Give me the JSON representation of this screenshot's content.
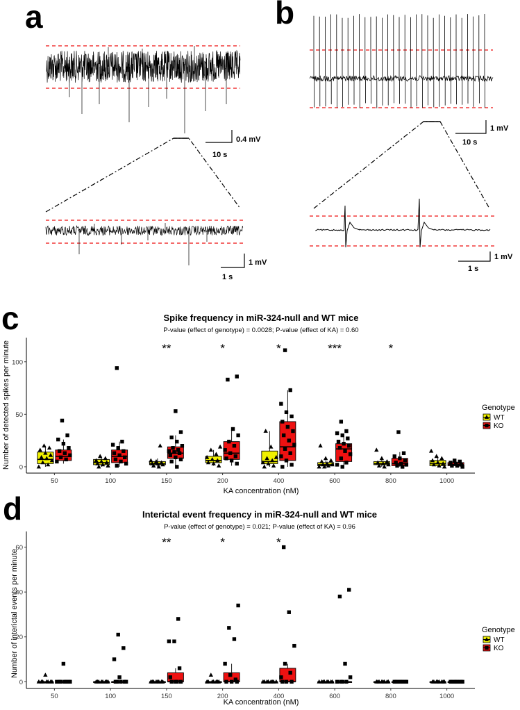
{
  "panels": {
    "a": {
      "label": "a",
      "scale_main_v": "0.4 mV",
      "scale_main_t": "10 s",
      "scale_zoom_v": "1 mV",
      "scale_zoom_t": "1 s"
    },
    "b": {
      "label": "b",
      "scale_main_v": "1 mV",
      "scale_main_t": "10 s",
      "scale_zoom_v": "1 mV",
      "scale_zoom_t": "1 s"
    },
    "c": {
      "label": "c"
    },
    "d": {
      "label": "d"
    }
  },
  "colors": {
    "WT": "#f0f000",
    "KO": "#ee1111",
    "threshold": "#ee1111"
  },
  "chart_data": [
    {
      "id": "c",
      "type": "box",
      "title": "Spike frequency in miR-324-null and WT mice",
      "subtitle": "P-value (effect of genotype) = 0.0028; P-value (effect of KA) = 0.60",
      "xlabel": "KA concentration (nM)",
      "ylabel": "Number of detected spikes per minute",
      "ylim": [
        -6,
        123
      ],
      "yticks": [
        "0",
        "50",
        "100"
      ],
      "yticks_values": [
        0,
        50,
        100
      ],
      "categories": [
        "50",
        "100",
        "150",
        "200",
        "400",
        "600",
        "800",
        "1000"
      ],
      "significance": [
        "",
        "",
        "**",
        "*",
        "*",
        "***",
        "*",
        ""
      ],
      "legend_title": "Genotype",
      "series": [
        {
          "name": "WT",
          "box": [
            {
              "lo": 0,
              "q1": 3,
              "med": 7,
              "q3": 14,
              "hi": 20
            },
            {
              "lo": 0,
              "q1": 2,
              "med": 4,
              "q3": 7,
              "hi": 10
            },
            {
              "lo": 0,
              "q1": 2,
              "med": 3,
              "q3": 5,
              "hi": 8
            },
            {
              "lo": 1,
              "q1": 4,
              "med": 6,
              "q3": 10,
              "hi": 16
            },
            {
              "lo": 0,
              "q1": 3,
              "med": 5,
              "q3": 15,
              "hi": 34
            },
            {
              "lo": 0,
              "q1": 1,
              "med": 2,
              "q3": 4,
              "hi": 6
            },
            {
              "lo": 0,
              "q1": 2,
              "med": 3,
              "q3": 5,
              "hi": 8
            },
            {
              "lo": 0,
              "q1": 1,
              "med": 3,
              "q3": 6,
              "hi": 10
            }
          ],
          "points": [
            [
              0,
              2,
              4,
              6,
              8,
              9,
              11,
              13,
              16,
              18,
              20
            ],
            [
              0,
              1,
              2,
              3,
              4,
              5,
              6,
              8,
              10
            ],
            [
              0,
              1,
              2,
              3,
              3,
              4,
              5,
              6,
              20
            ],
            [
              1,
              3,
              4,
              6,
              7,
              9,
              12,
              16,
              19
            ],
            [
              0,
              1,
              3,
              4,
              6,
              8,
              9,
              19,
              34
            ],
            [
              0,
              0,
              1,
              2,
              2,
              3,
              5,
              6,
              8,
              20
            ],
            [
              0,
              1,
              2,
              3,
              4,
              5,
              8,
              16
            ],
            [
              0,
              1,
              2,
              3,
              4,
              6,
              8,
              10,
              15
            ]
          ]
        },
        {
          "name": "KO",
          "box": [
            {
              "lo": 3,
              "q1": 6,
              "med": 10,
              "q3": 16,
              "hi": 26
            },
            {
              "lo": 0,
              "q1": 4,
              "med": 10,
              "q3": 16,
              "hi": 24
            },
            {
              "lo": 0,
              "q1": 8,
              "med": 13,
              "q3": 19,
              "hi": 30
            },
            {
              "lo": 1,
              "q1": 7,
              "med": 13,
              "q3": 24,
              "hi": 36
            },
            {
              "lo": 0,
              "q1": 6,
              "med": 19,
              "q3": 43,
              "hi": 73
            },
            {
              "lo": 0,
              "q1": 5,
              "med": 17,
              "q3": 22,
              "hi": 30
            },
            {
              "lo": 0,
              "q1": 1,
              "med": 3,
              "q3": 8,
              "hi": 14
            },
            {
              "lo": 0,
              "q1": 1,
              "med": 2,
              "q3": 4,
              "hi": 6
            }
          ],
          "points": [
            [
              5,
              7,
              9,
              11,
              13,
              15,
              18,
              22,
              26,
              30,
              44
            ],
            [
              1,
              3,
              5,
              7,
              9,
              11,
              13,
              15,
              18,
              21,
              24,
              94
            ],
            [
              0,
              5,
              7,
              9,
              11,
              13,
              14,
              15,
              16,
              18,
              20,
              24,
              28,
              33,
              53
            ],
            [
              3,
              6,
              8,
              10,
              13,
              16,
              20,
              24,
              30,
              36,
              83,
              86
            ],
            [
              0,
              2,
              6,
              10,
              13,
              17,
              21,
              25,
              30,
              34,
              38,
              43,
              48,
              52,
              60,
              73,
              111
            ],
            [
              0,
              2,
              4,
              8,
              12,
              15,
              18,
              20,
              22,
              24,
              27,
              30,
              32,
              34,
              43
            ],
            [
              0,
              1,
              2,
              3,
              4,
              6,
              8,
              10,
              13,
              33
            ],
            [
              0,
              1,
              1,
              2,
              3,
              4,
              5,
              6
            ]
          ]
        }
      ]
    },
    {
      "id": "d",
      "type": "box",
      "title": "Interictal event frequency in miR-324-null and WT mice",
      "subtitle": "P-value (effect of genotype) = 0.021; P-value (effect of KA) = 0.96",
      "xlabel": "KA concentration (nM)",
      "ylabel": "Number of interictal events per minute",
      "ylim": [
        -3,
        67
      ],
      "yticks": [
        "0",
        "20",
        "40",
        "60"
      ],
      "yticks_values": [
        0,
        20,
        40,
        60
      ],
      "categories": [
        "50",
        "100",
        "150",
        "200",
        "400",
        "600",
        "800",
        "1000"
      ],
      "significance": [
        "",
        "",
        "**",
        "*",
        "*",
        "",
        "",
        ""
      ],
      "legend_title": "Genotype",
      "series": [
        {
          "name": "WT",
          "box": [
            {
              "lo": 0,
              "q1": 0,
              "med": 0,
              "q3": 0,
              "hi": 0
            },
            {
              "lo": 0,
              "q1": 0,
              "med": 0,
              "q3": 0,
              "hi": 0
            },
            {
              "lo": 0,
              "q1": 0,
              "med": 0,
              "q3": 0,
              "hi": 0
            },
            {
              "lo": 0,
              "q1": 0,
              "med": 0,
              "q3": 0,
              "hi": 0
            },
            {
              "lo": 0,
              "q1": 0,
              "med": 0,
              "q3": 0,
              "hi": 0
            },
            {
              "lo": 0,
              "q1": 0,
              "med": 0,
              "q3": 0,
              "hi": 0
            },
            {
              "lo": 0,
              "q1": 0,
              "med": 0,
              "q3": 0,
              "hi": 0
            },
            {
              "lo": 0,
              "q1": 0,
              "med": 0,
              "q3": 0,
              "hi": 0
            }
          ],
          "points": [
            [
              0,
              0,
              0,
              0,
              0,
              0,
              0,
              3
            ],
            [
              0,
              0,
              0,
              0,
              0,
              0,
              0,
              0
            ],
            [
              0,
              0,
              0,
              0,
              0,
              0,
              0,
              0
            ],
            [
              0,
              0,
              0,
              0,
              0,
              0,
              0,
              3
            ],
            [
              0,
              0,
              0,
              0,
              0,
              0,
              0,
              0
            ],
            [
              0,
              0,
              0,
              0,
              0,
              0,
              0,
              0
            ],
            [
              0,
              0,
              0,
              0,
              0,
              0,
              0,
              0
            ],
            [
              0,
              0,
              0,
              0,
              0,
              0,
              0,
              0
            ]
          ]
        },
        {
          "name": "KO",
          "box": [
            {
              "lo": 0,
              "q1": 0,
              "med": 0,
              "q3": 0,
              "hi": 0
            },
            {
              "lo": 0,
              "q1": 0,
              "med": 0,
              "q3": 0,
              "hi": 0
            },
            {
              "lo": 0,
              "q1": 0,
              "med": 0,
              "q3": 4,
              "hi": 6
            },
            {
              "lo": 0,
              "q1": 0,
              "med": 0,
              "q3": 4,
              "hi": 8
            },
            {
              "lo": 0,
              "q1": 0,
              "med": 0,
              "q3": 6,
              "hi": 8
            },
            {
              "lo": 0,
              "q1": 0,
              "med": 0,
              "q3": 0,
              "hi": 0
            },
            {
              "lo": 0,
              "q1": 0,
              "med": 0,
              "q3": 0,
              "hi": 0
            },
            {
              "lo": 0,
              "q1": 0,
              "med": 0,
              "q3": 0,
              "hi": 0
            }
          ],
          "points": [
            [
              0,
              0,
              0,
              0,
              0,
              0,
              0,
              8
            ],
            [
              0,
              0,
              0,
              0,
              0,
              2,
              10,
              15,
              21
            ],
            [
              0,
              0,
              0,
              0,
              2,
              6,
              18,
              18,
              28
            ],
            [
              0,
              0,
              0,
              1,
              3,
              8,
              19,
              24,
              34
            ],
            [
              0,
              0,
              0,
              2,
              4,
              8,
              16,
              31,
              60
            ],
            [
              0,
              0,
              0,
              0,
              2,
              8,
              38,
              41
            ],
            [
              0,
              0,
              0,
              0,
              0,
              0,
              0,
              0
            ],
            [
              0,
              0,
              0,
              0,
              0,
              0,
              0,
              0
            ]
          ]
        }
      ]
    }
  ]
}
